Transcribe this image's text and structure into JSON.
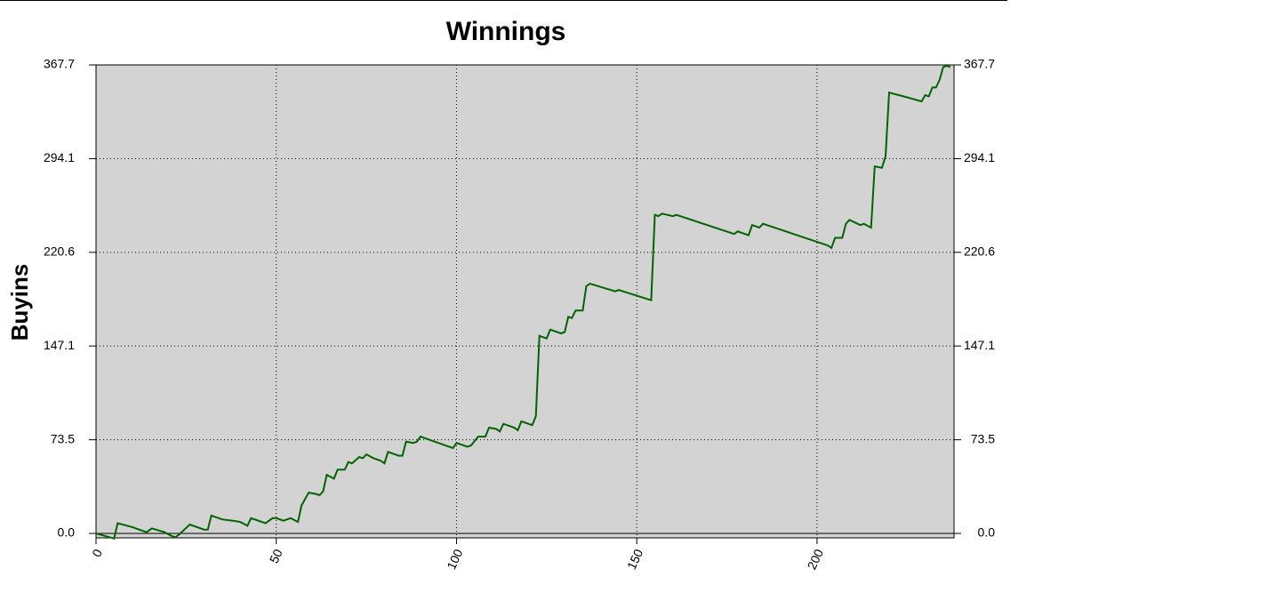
{
  "chart_data": {
    "type": "line",
    "title": "Winnings",
    "y_label": "Buyins",
    "xlim": [
      0,
      238
    ],
    "xticks": [
      0,
      50,
      100,
      150,
      200
    ],
    "ylim": [
      -3.5,
      367.7
    ],
    "yticks": [
      {
        "value": 0,
        "label": "0.0"
      },
      73.5,
      147.1,
      220.6,
      294.1,
      367.7
    ],
    "grid": true,
    "background": "#d3d3d3",
    "series": [
      {
        "color": "#006400",
        "x": [
          0,
          5,
          6,
          10,
          14,
          15.5,
          19,
          21,
          22,
          23,
          26,
          30,
          31,
          32,
          35,
          38,
          40,
          42,
          43,
          46,
          47,
          49,
          50,
          52,
          54,
          56,
          57,
          59,
          61,
          62,
          63,
          64,
          66,
          67,
          69,
          70,
          71,
          73,
          74,
          75,
          77,
          79,
          80,
          81,
          84,
          85,
          86,
          88,
          89,
          90,
          96,
          99,
          100,
          103,
          104,
          106,
          108,
          109,
          111,
          112,
          113,
          116,
          117,
          118,
          121,
          122,
          123,
          125,
          126,
          129,
          130,
          131,
          132,
          133,
          135,
          136,
          137,
          144,
          145,
          154,
          155,
          156,
          157,
          160,
          161,
          177,
          178,
          181,
          182,
          184,
          185,
          203,
          204,
          205,
          207,
          208,
          209,
          212,
          213,
          215,
          216,
          218,
          219,
          220,
          224,
          229,
          230,
          231,
          232,
          233,
          234,
          235,
          236,
          237
        ],
        "values": [
          0,
          -4,
          8,
          5,
          1,
          4,
          1,
          -2,
          -3,
          -1,
          7,
          3,
          3,
          14,
          11,
          10,
          9,
          6,
          12,
          9,
          8,
          12,
          12,
          10,
          12,
          9,
          22,
          32,
          31,
          30,
          33,
          46,
          43,
          50,
          50,
          56,
          55,
          60,
          59,
          62,
          59,
          57,
          55,
          64,
          61,
          61,
          72,
          71,
          72,
          76,
          70,
          67,
          71,
          68,
          69,
          76,
          76,
          83,
          82,
          80,
          86,
          83,
          81,
          88,
          85,
          92,
          155,
          153,
          160,
          157,
          158,
          170,
          169,
          175,
          175,
          194,
          196,
          190,
          191,
          183,
          250,
          249,
          251,
          249,
          250,
          235,
          237,
          234,
          242,
          240,
          243,
          226,
          224,
          232,
          232,
          243,
          246,
          242,
          243,
          240,
          288,
          287,
          296,
          346,
          343,
          339,
          344,
          343,
          350,
          350,
          356,
          366,
          367,
          366
        ]
      }
    ]
  }
}
